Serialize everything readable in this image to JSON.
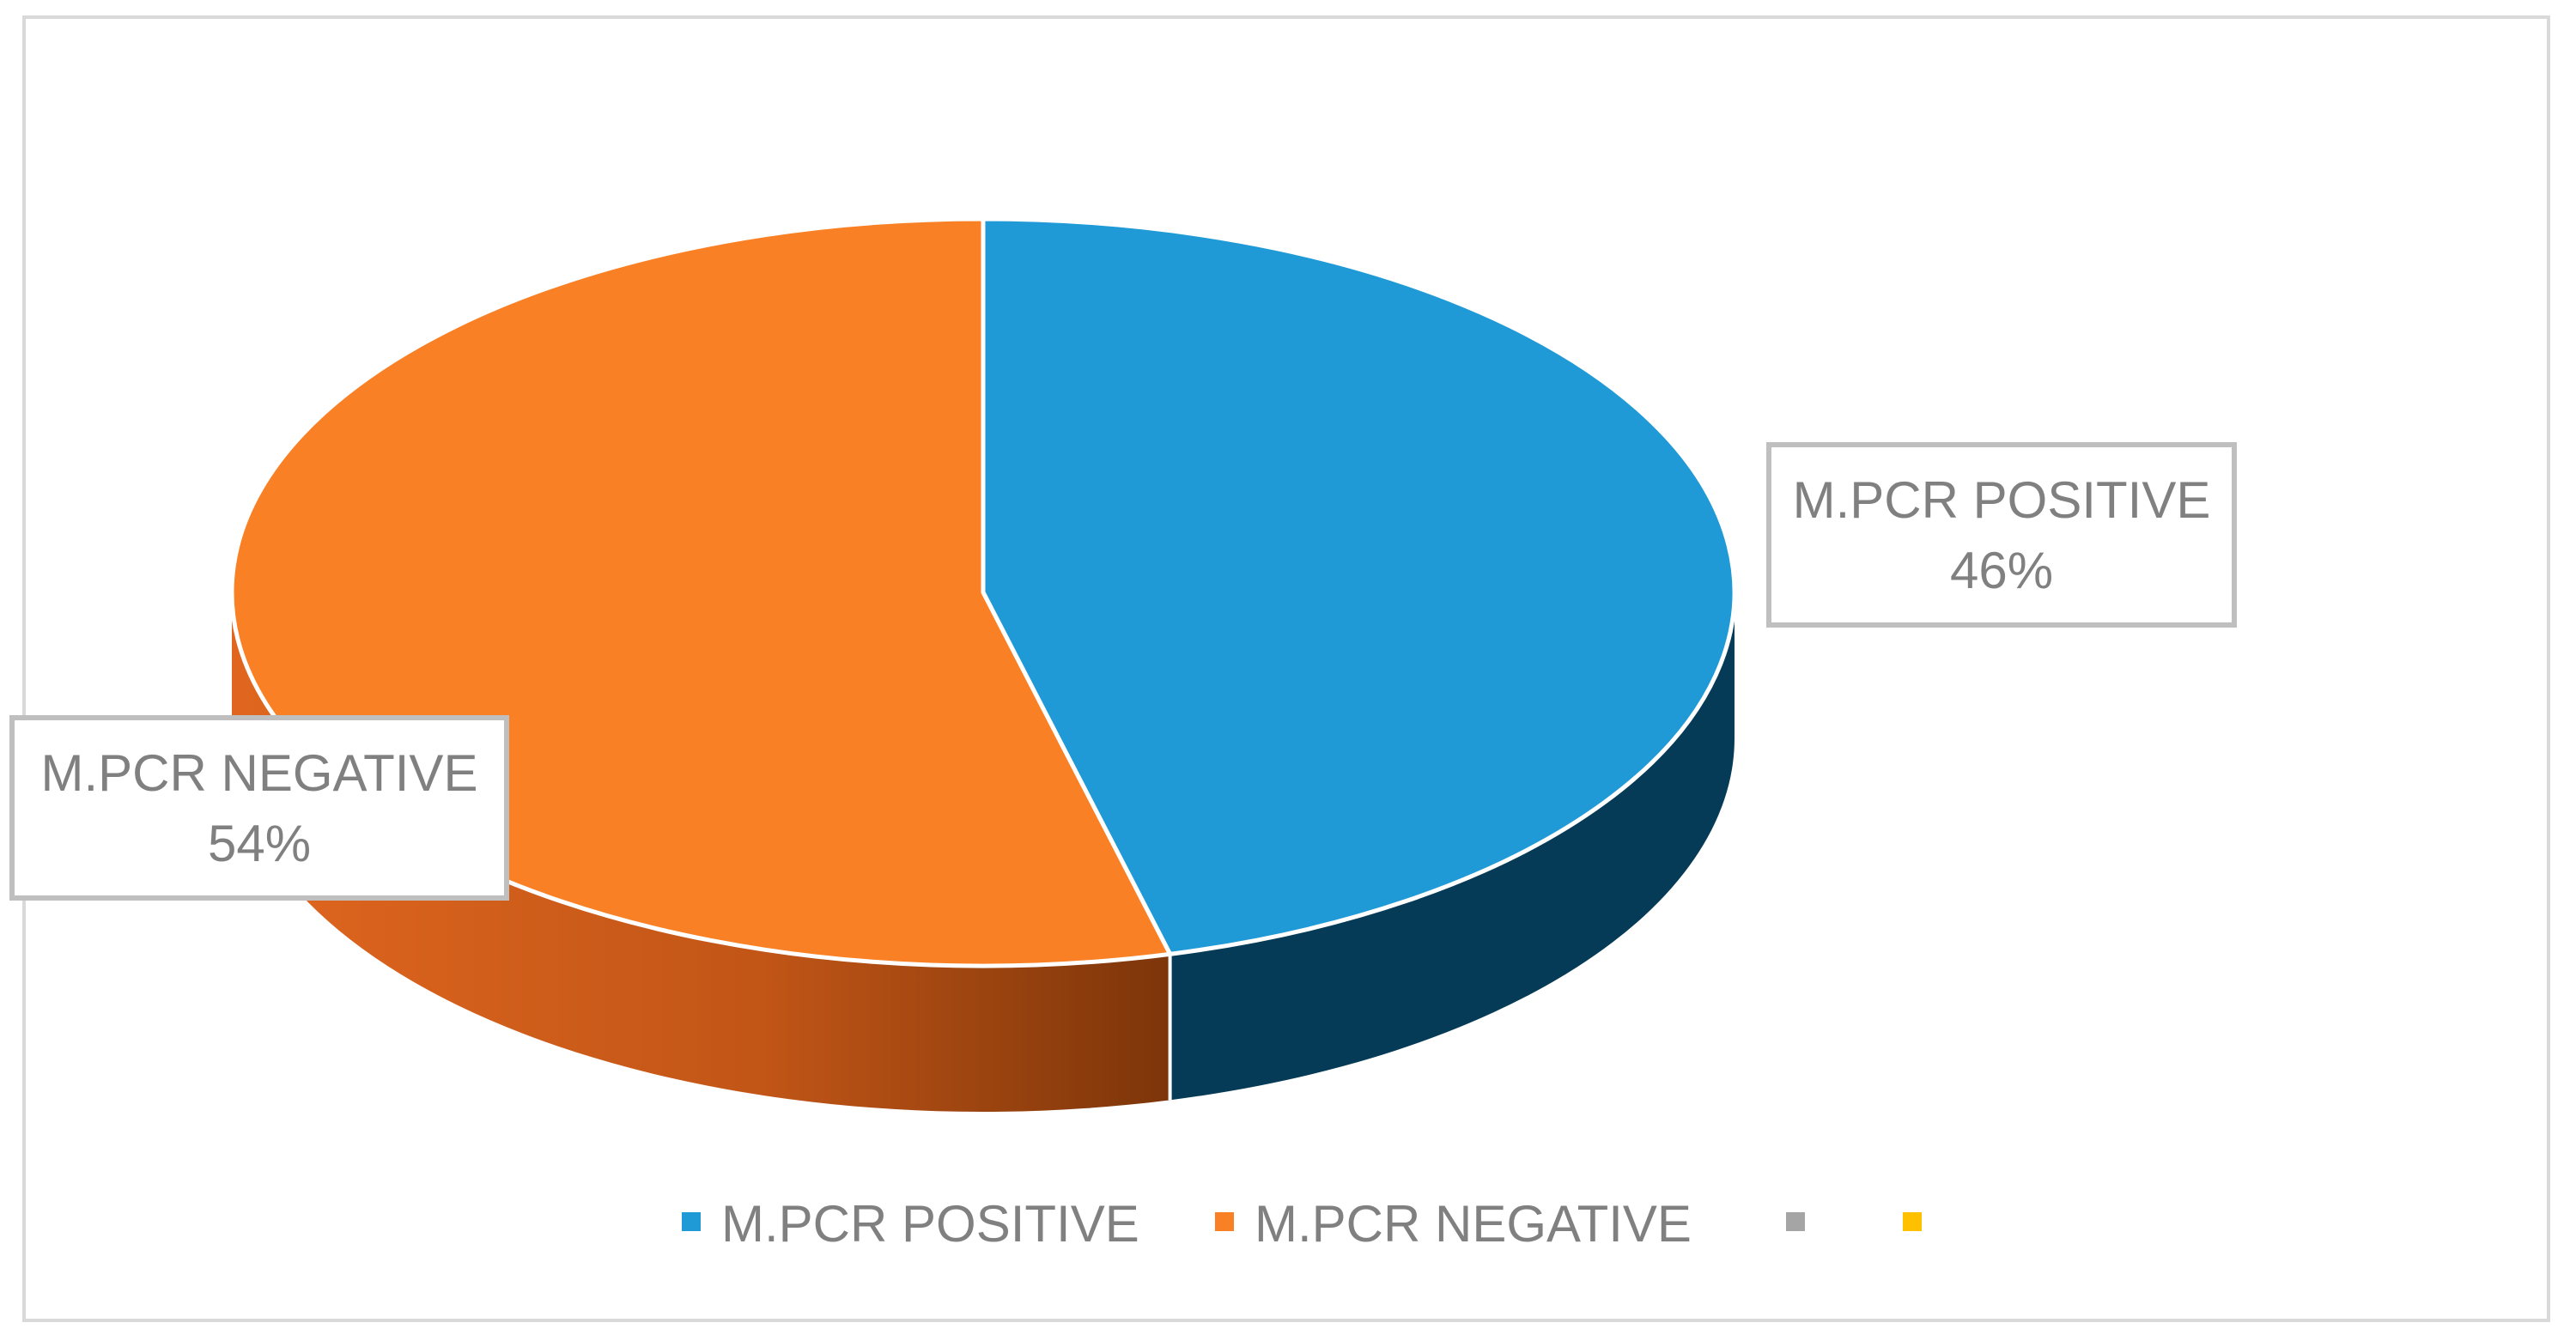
{
  "chart_data": {
    "type": "pie",
    "style": "3d",
    "slices": [
      {
        "label": "M.PCR POSITIVE",
        "value": 46,
        "value_text": "46%",
        "color": "#209AD6",
        "side_color": "#053B56"
      },
      {
        "label": "M.PCR NEGATIVE",
        "value": 54,
        "value_text": "54%",
        "color": "#F98025",
        "side_color": "#C7561A"
      }
    ],
    "legend": {
      "position": "bottom",
      "entries": [
        {
          "label": "M.PCR POSITIVE",
          "color": "#209AD6"
        },
        {
          "label": "M.PCR NEGATIVE",
          "color": "#F98025"
        },
        {
          "label": "",
          "color": "#A5A5A5"
        },
        {
          "label": "",
          "color": "#FFC000"
        }
      ]
    }
  }
}
